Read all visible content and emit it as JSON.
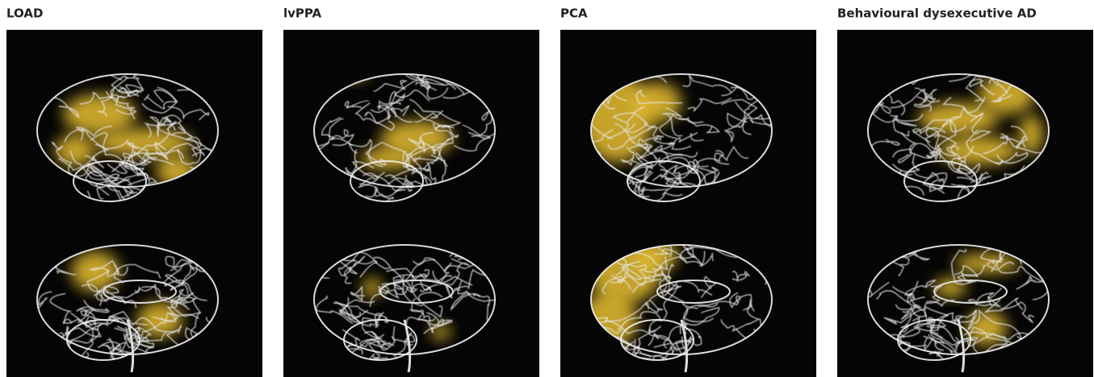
{
  "panels": [
    {
      "title": "LOAD"
    },
    {
      "title": "lvPPA"
    },
    {
      "title": "PCA"
    },
    {
      "title": "Behavioural dysexecutive AD"
    }
  ]
}
